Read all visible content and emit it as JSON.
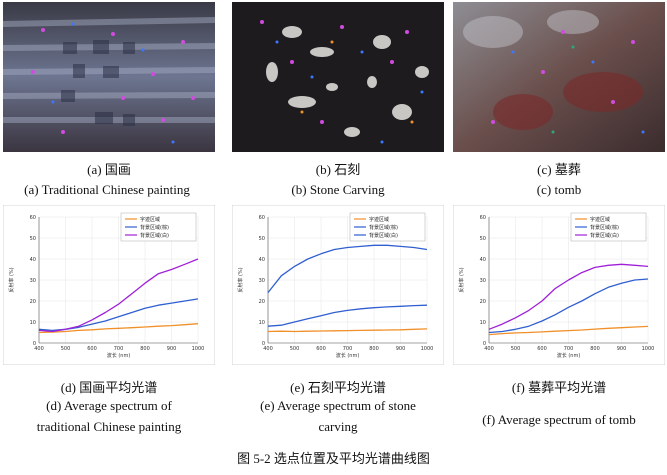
{
  "panels": [
    {
      "photo_caption_zh": "(a)  国画",
      "photo_caption_en": "(a) Traditional Chinese painting",
      "chart_caption_zh": "(d)  国画平均光谱",
      "chart_caption_en": [
        "(d) Average spectrum of",
        "traditional Chinese painting"
      ]
    },
    {
      "photo_caption_zh": "(b)  石刻",
      "photo_caption_en": "(b) Stone Carving",
      "chart_caption_zh": "(e)  石刻平均光谱",
      "chart_caption_en": [
        "(e) Average spectrum of stone",
        "carving"
      ]
    },
    {
      "photo_caption_zh": "(c)  墓葬",
      "photo_caption_en": "(c) tomb",
      "chart_caption_zh": "(f)  墓葬平均光谱",
      "chart_caption_en": [
        "(f) Average spectrum of tomb"
      ]
    }
  ],
  "figure_caption": "图 5-2 选点位置及平均光谱曲线图",
  "colors": {
    "orange": "#f0902a",
    "blue": "#2f5fd0",
    "purple": "#a020d8",
    "teal": "#2aa97a"
  },
  "chart_data": [
    {
      "type": "line",
      "xlabel": "波长 (nm)",
      "ylabel": "反射率 (%)",
      "xlim": [
        400,
        1000
      ],
      "ylim": [
        0,
        60
      ],
      "x_ticks": [
        "400",
        "500",
        "600",
        "700",
        "800",
        "900",
        "1000"
      ],
      "y_ticks": [
        "0",
        "10",
        "20",
        "30",
        "40",
        "50",
        "60"
      ],
      "x": [
        400,
        450,
        500,
        550,
        600,
        650,
        700,
        750,
        800,
        850,
        900,
        950,
        1000
      ],
      "series": [
        {
          "name": "字迹区域",
          "color": "orange",
          "values": [
            5.0,
            5.2,
            5.5,
            6.0,
            6.3,
            6.7,
            7.0,
            7.3,
            7.6,
            8.0,
            8.3,
            8.7,
            9.2
          ]
        },
        {
          "name": "背景区域(棕)",
          "color": "blue",
          "values": [
            6.5,
            6.0,
            6.5,
            7.5,
            9.0,
            10.5,
            12.5,
            14.5,
            16.5,
            18.0,
            19.0,
            20.0,
            21.0
          ]
        },
        {
          "name": "背景区域(白)",
          "color": "purple",
          "values": [
            6.0,
            5.5,
            6.5,
            8.0,
            11.0,
            14.5,
            18.5,
            23.5,
            28.5,
            33.0,
            35.0,
            37.5,
            40.0
          ]
        }
      ]
    },
    {
      "type": "line",
      "xlabel": "波长 (nm)",
      "ylabel": "反射率 (%)",
      "xlim": [
        400,
        1000
      ],
      "ylim": [
        0,
        60
      ],
      "x_ticks": [
        "400",
        "500",
        "600",
        "700",
        "800",
        "900",
        "1000"
      ],
      "y_ticks": [
        "0",
        "10",
        "20",
        "30",
        "40",
        "50",
        "60"
      ],
      "x": [
        400,
        450,
        500,
        550,
        600,
        650,
        700,
        750,
        800,
        850,
        900,
        950,
        1000
      ],
      "series": [
        {
          "name": "字迹区域",
          "color": "orange",
          "values": [
            5.5,
            5.6,
            5.5,
            5.6,
            5.7,
            5.8,
            5.9,
            6.0,
            6.1,
            6.2,
            6.3,
            6.5,
            6.7
          ]
        },
        {
          "name": "背景区域(棕)",
          "color": "blue",
          "values": [
            8.0,
            8.5,
            10.0,
            11.5,
            13.0,
            14.5,
            15.5,
            16.3,
            16.8,
            17.2,
            17.5,
            17.8,
            18.0
          ]
        },
        {
          "name": "背景区域(白)",
          "color": "blue",
          "values": [
            24.0,
            32.0,
            36.5,
            40.0,
            42.5,
            44.5,
            45.5,
            46.0,
            46.5,
            46.5,
            46.0,
            45.5,
            44.5
          ]
        }
      ]
    },
    {
      "type": "line",
      "xlabel": "波长 (nm)",
      "ylabel": "反射率 (%)",
      "xlim": [
        400,
        1000
      ],
      "ylim": [
        0,
        60
      ],
      "x_ticks": [
        "400",
        "500",
        "600",
        "700",
        "800",
        "900",
        "1000"
      ],
      "y_ticks": [
        "0",
        "10",
        "20",
        "30",
        "40",
        "50",
        "60"
      ],
      "x": [
        400,
        450,
        500,
        550,
        600,
        650,
        700,
        750,
        800,
        850,
        900,
        950,
        1000
      ],
      "series": [
        {
          "name": "字迹区域",
          "color": "orange",
          "values": [
            4.0,
            4.5,
            4.8,
            5.0,
            5.3,
            5.6,
            5.9,
            6.2,
            6.6,
            7.0,
            7.3,
            7.6,
            7.9
          ]
        },
        {
          "name": "背景区域(棕)",
          "color": "blue",
          "values": [
            5.0,
            5.5,
            6.5,
            8.0,
            10.5,
            13.5,
            17.0,
            20.0,
            23.5,
            26.5,
            28.5,
            30.0,
            30.5
          ]
        },
        {
          "name": "背景区域(白)",
          "color": "purple",
          "values": [
            6.5,
            9.0,
            12.0,
            15.5,
            20.0,
            26.0,
            30.0,
            33.5,
            36.0,
            37.0,
            37.5,
            37.0,
            36.5
          ]
        }
      ]
    }
  ]
}
